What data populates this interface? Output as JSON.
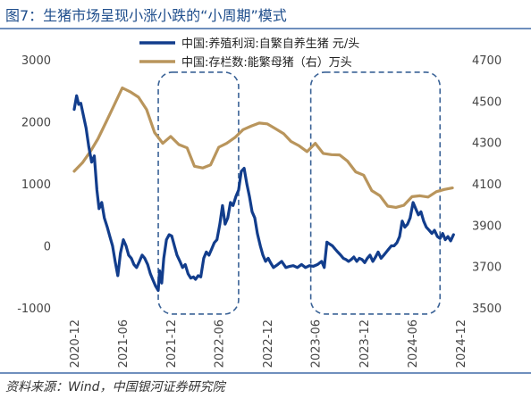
{
  "title": "图7：生猪市场呈现小涨小跌的“小周期”模式",
  "source": "资料来源：Wind，中国银河证券研究院",
  "chart_data": {
    "type": "line",
    "x_ticks": [
      "2020-12",
      "2021-06",
      "2021-12",
      "2022-06",
      "2022-12",
      "2023-06",
      "2023-12",
      "2024-06",
      "2024-12"
    ],
    "x_range": [
      "2020-12",
      "2024-12"
    ],
    "y_left": {
      "ticks": [
        3000,
        2000,
        1000,
        0,
        -1000
      ],
      "range": [
        -1000,
        3000
      ]
    },
    "y_right": {
      "ticks": [
        4700,
        4500,
        4300,
        4100,
        3900,
        3700,
        3500
      ],
      "range": [
        3500,
        4700
      ]
    },
    "series": [
      {
        "name": "中国:养殖利润:自繁自养生猪 元/头",
        "axis": "left",
        "color": "#123d8c",
        "points": [
          [
            "2020-12-01",
            2200
          ],
          [
            "2020-12-10",
            2420
          ],
          [
            "2020-12-18",
            2280
          ],
          [
            "2020-12-26",
            2300
          ],
          [
            "2021-01-05",
            2100
          ],
          [
            "2021-01-15",
            1900
          ],
          [
            "2021-01-25",
            1600
          ],
          [
            "2021-02-05",
            1350
          ],
          [
            "2021-02-15",
            1450
          ],
          [
            "2021-02-25",
            900
          ],
          [
            "2021-03-05",
            600
          ],
          [
            "2021-03-15",
            700
          ],
          [
            "2021-03-25",
            450
          ],
          [
            "2021-04-05",
            300
          ],
          [
            "2021-04-15",
            150
          ],
          [
            "2021-04-25",
            0
          ],
          [
            "2021-05-05",
            -250
          ],
          [
            "2021-05-15",
            -480
          ],
          [
            "2021-05-25",
            -120
          ],
          [
            "2021-06-05",
            100
          ],
          [
            "2021-06-15",
            0
          ],
          [
            "2021-06-25",
            -150
          ],
          [
            "2021-07-05",
            -200
          ],
          [
            "2021-07-15",
            -300
          ],
          [
            "2021-07-25",
            -350
          ],
          [
            "2021-08-05",
            -250
          ],
          [
            "2021-08-15",
            -150
          ],
          [
            "2021-08-25",
            -200
          ],
          [
            "2021-09-05",
            -300
          ],
          [
            "2021-09-15",
            -450
          ],
          [
            "2021-09-25",
            -550
          ],
          [
            "2021-10-05",
            -650
          ],
          [
            "2021-10-15",
            -720
          ],
          [
            "2021-10-20",
            -400
          ],
          [
            "2021-10-28",
            -600
          ],
          [
            "2021-11-05",
            -200
          ],
          [
            "2021-11-15",
            100
          ],
          [
            "2021-11-25",
            180
          ],
          [
            "2021-12-05",
            160
          ],
          [
            "2021-12-15",
            0
          ],
          [
            "2021-12-25",
            -150
          ],
          [
            "2022-01-05",
            -250
          ],
          [
            "2022-01-15",
            -350
          ],
          [
            "2022-01-25",
            -300
          ],
          [
            "2022-02-05",
            -450
          ],
          [
            "2022-02-15",
            -520
          ],
          [
            "2022-02-25",
            -500
          ],
          [
            "2022-03-05",
            -540
          ],
          [
            "2022-03-15",
            -480
          ],
          [
            "2022-03-25",
            -500
          ],
          [
            "2022-04-05",
            -200
          ],
          [
            "2022-04-15",
            -100
          ],
          [
            "2022-04-25",
            -150
          ],
          [
            "2022-05-05",
            -50
          ],
          [
            "2022-05-15",
            50
          ],
          [
            "2022-05-25",
            100
          ],
          [
            "2022-06-05",
            350
          ],
          [
            "2022-06-15",
            650
          ],
          [
            "2022-06-25",
            350
          ],
          [
            "2022-07-05",
            450
          ],
          [
            "2022-07-15",
            700
          ],
          [
            "2022-07-25",
            650
          ],
          [
            "2022-08-05",
            800
          ],
          [
            "2022-08-15",
            900
          ],
          [
            "2022-08-25",
            1200
          ],
          [
            "2022-09-05",
            1250
          ],
          [
            "2022-09-15",
            1000
          ],
          [
            "2022-09-25",
            800
          ],
          [
            "2022-10-05",
            550
          ],
          [
            "2022-10-15",
            450
          ],
          [
            "2022-10-25",
            200
          ],
          [
            "2022-11-05",
            0
          ],
          [
            "2022-11-15",
            -150
          ],
          [
            "2022-11-25",
            -250
          ],
          [
            "2022-12-05",
            -200
          ],
          [
            "2022-12-15",
            -280
          ],
          [
            "2022-12-25",
            -350
          ],
          [
            "2023-01-10",
            -300
          ],
          [
            "2023-01-25",
            -250
          ],
          [
            "2023-02-10",
            -350
          ],
          [
            "2023-02-25",
            -330
          ],
          [
            "2023-03-10",
            -320
          ],
          [
            "2023-03-25",
            -350
          ],
          [
            "2023-04-10",
            -300
          ],
          [
            "2023-04-25",
            -350
          ],
          [
            "2023-05-10",
            -320
          ],
          [
            "2023-05-25",
            -330
          ],
          [
            "2023-06-10",
            -300
          ],
          [
            "2023-06-25",
            -250
          ],
          [
            "2023-07-05",
            -350
          ],
          [
            "2023-07-15",
            60
          ],
          [
            "2023-07-25",
            30
          ],
          [
            "2023-08-05",
            0
          ],
          [
            "2023-08-15",
            -50
          ],
          [
            "2023-08-25",
            -100
          ],
          [
            "2023-09-05",
            -150
          ],
          [
            "2023-09-15",
            -200
          ],
          [
            "2023-09-25",
            -220
          ],
          [
            "2023-10-05",
            -250
          ],
          [
            "2023-10-15",
            -220
          ],
          [
            "2023-10-25",
            -180
          ],
          [
            "2023-11-05",
            -250
          ],
          [
            "2023-11-15",
            -200
          ],
          [
            "2023-11-25",
            -220
          ],
          [
            "2023-12-05",
            -270
          ],
          [
            "2023-12-15",
            -200
          ],
          [
            "2023-12-25",
            -150
          ],
          [
            "2024-01-05",
            -250
          ],
          [
            "2024-01-15",
            -180
          ],
          [
            "2024-01-25",
            -100
          ],
          [
            "2024-02-05",
            -200
          ],
          [
            "2024-02-15",
            -150
          ],
          [
            "2024-02-25",
            -100
          ],
          [
            "2024-03-05",
            -50
          ],
          [
            "2024-03-15",
            0
          ],
          [
            "2024-03-25",
            0
          ],
          [
            "2024-04-05",
            50
          ],
          [
            "2024-04-15",
            150
          ],
          [
            "2024-04-25",
            400
          ],
          [
            "2024-05-05",
            300
          ],
          [
            "2024-05-15",
            350
          ],
          [
            "2024-05-25",
            450
          ],
          [
            "2024-06-05",
            700
          ],
          [
            "2024-06-15",
            600
          ],
          [
            "2024-06-25",
            500
          ],
          [
            "2024-07-05",
            550
          ],
          [
            "2024-07-15",
            400
          ],
          [
            "2024-07-25",
            300
          ],
          [
            "2024-08-05",
            250
          ],
          [
            "2024-08-15",
            200
          ],
          [
            "2024-08-25",
            250
          ],
          [
            "2024-09-05",
            150
          ],
          [
            "2024-09-15",
            120
          ],
          [
            "2024-09-25",
            200
          ],
          [
            "2024-10-05",
            100
          ],
          [
            "2024-10-15",
            150
          ],
          [
            "2024-10-25",
            80
          ],
          [
            "2024-11-05",
            180
          ]
        ]
      },
      {
        "name": "中国:存栏数:能繁母猪（右）万头",
        "axis": "right",
        "color": "#b9955c",
        "points": [
          [
            "2020-12-01",
            4161
          ],
          [
            "2021-01-01",
            4202
          ],
          [
            "2021-02-01",
            4258
          ],
          [
            "2021-03-01",
            4318
          ],
          [
            "2021-04-01",
            4400
          ],
          [
            "2021-05-01",
            4480
          ],
          [
            "2021-06-01",
            4564
          ],
          [
            "2021-07-01",
            4545
          ],
          [
            "2021-08-01",
            4519
          ],
          [
            "2021-09-01",
            4459
          ],
          [
            "2021-10-01",
            4348
          ],
          [
            "2021-11-01",
            4296
          ],
          [
            "2021-12-01",
            4329
          ],
          [
            "2022-01-01",
            4290
          ],
          [
            "2022-02-01",
            4274
          ],
          [
            "2022-03-01",
            4185
          ],
          [
            "2022-04-01",
            4177
          ],
          [
            "2022-05-01",
            4192
          ],
          [
            "2022-06-01",
            4277
          ],
          [
            "2022-07-01",
            4296
          ],
          [
            "2022-08-01",
            4324
          ],
          [
            "2022-09-01",
            4362
          ],
          [
            "2022-10-01",
            4379
          ],
          [
            "2022-11-01",
            4394
          ],
          [
            "2022-12-01",
            4390
          ],
          [
            "2023-01-01",
            4367
          ],
          [
            "2023-02-01",
            4343
          ],
          [
            "2023-03-01",
            4305
          ],
          [
            "2023-04-01",
            4284
          ],
          [
            "2023-05-01",
            4256
          ],
          [
            "2023-06-01",
            4296
          ],
          [
            "2023-07-01",
            4247
          ],
          [
            "2023-08-01",
            4241
          ],
          [
            "2023-09-01",
            4240
          ],
          [
            "2023-10-01",
            4210
          ],
          [
            "2023-11-01",
            4158
          ],
          [
            "2023-12-01",
            4142
          ],
          [
            "2024-01-01",
            4067
          ],
          [
            "2024-02-01",
            4042
          ],
          [
            "2024-03-01",
            3992
          ],
          [
            "2024-04-01",
            3986
          ],
          [
            "2024-05-01",
            3996
          ],
          [
            "2024-06-01",
            4038
          ],
          [
            "2024-07-01",
            4042
          ],
          [
            "2024-08-01",
            4036
          ],
          [
            "2024-09-01",
            4062
          ],
          [
            "2024-10-01",
            4073
          ],
          [
            "2024-11-01",
            4080
          ]
        ]
      }
    ],
    "boxes": [
      {
        "x0": "2021-10-15",
        "x1": "2022-08-15",
        "y0": -1100,
        "y1": 2800,
        "color": "#3a6296"
      },
      {
        "x0": "2023-05-15",
        "x1": "2024-09-15",
        "y0": -1100,
        "y1": 2800,
        "color": "#3a6296"
      }
    ]
  }
}
